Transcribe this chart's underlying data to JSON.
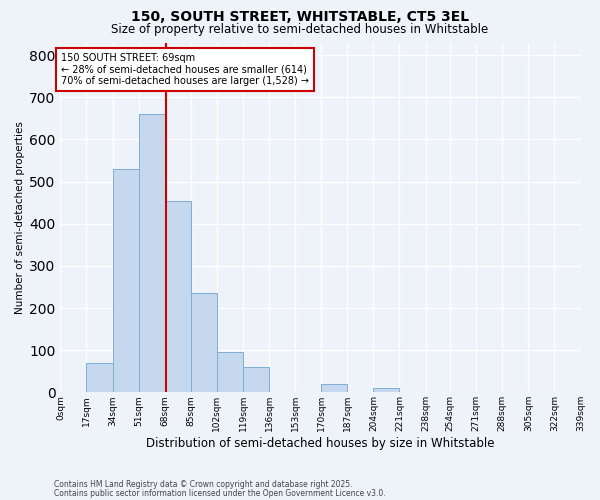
{
  "title1": "150, SOUTH STREET, WHITSTABLE, CT5 3EL",
  "title2": "Size of property relative to semi-detached houses in Whitstable",
  "xlabel": "Distribution of semi-detached houses by size in Whitstable",
  "ylabel": "Number of semi-detached properties",
  "bar_color": "#c5d8ed",
  "bar_edge_color": "#7bafd4",
  "bg_color": "#eef3f9",
  "grid_color": "#ffffff",
  "bin_edges": [
    0,
    17,
    34,
    51,
    68,
    85,
    102,
    119,
    136,
    153,
    170,
    187,
    204,
    221,
    238,
    254,
    271,
    288,
    305,
    322,
    339
  ],
  "bin_labels": [
    "0sqm",
    "17sqm",
    "34sqm",
    "51sqm",
    "68sqm",
    "85sqm",
    "102sqm",
    "119sqm",
    "136sqm",
    "153sqm",
    "170sqm",
    "187sqm",
    "204sqm",
    "221sqm",
    "238sqm",
    "254sqm",
    "271sqm",
    "288sqm",
    "305sqm",
    "322sqm",
    "339sqm"
  ],
  "heights": [
    0,
    70,
    530,
    660,
    455,
    235,
    95,
    60,
    0,
    0,
    20,
    0,
    10,
    0,
    0,
    0,
    0,
    0,
    0,
    0
  ],
  "property_size": 69,
  "annotation_title": "150 SOUTH STREET: 69sqm",
  "annotation_line1": "← 28% of semi-detached houses are smaller (614)",
  "annotation_line2": "70% of semi-detached houses are larger (1,528) →",
  "vline_color": "#cc0000",
  "annotation_box_color": "#ffffff",
  "annotation_box_edge": "#cc0000",
  "footnote1": "Contains HM Land Registry data © Crown copyright and database right 2025.",
  "footnote2": "Contains public sector information licensed under the Open Government Licence v3.0.",
  "ylim": [
    0,
    830
  ],
  "yticks": [
    0,
    100,
    200,
    300,
    400,
    500,
    600,
    700,
    800
  ]
}
